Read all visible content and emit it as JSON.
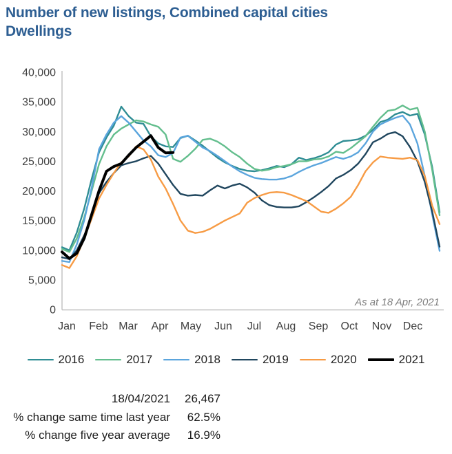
{
  "header": {
    "title": "Number of new listings, Combined capital cities",
    "subtitle": "Dwellings"
  },
  "chart_data": {
    "type": "line",
    "title": "Number of new listings, Combined capital cities",
    "subtitle": "Dwellings",
    "frequency": "weekly",
    "grid": "off",
    "legend_position": "bottom",
    "annotation": "As at 18 Apr, 2021",
    "x_axis": {
      "label": "",
      "months": [
        "Jan",
        "Feb",
        "Mar",
        "Apr",
        "May",
        "Jun",
        "Jul",
        "Aug",
        "Sep",
        "Oct",
        "Nov",
        "Dec"
      ]
    },
    "y_axis": {
      "label": "",
      "min": 0,
      "max": 40000,
      "tick_step": 5000,
      "tick_labels": [
        "40,000",
        "35,000",
        "30,000",
        "25,000",
        "20,000",
        "15,000",
        "10,000",
        "5,000",
        "0"
      ]
    },
    "series": [
      {
        "name": "2016",
        "color": "#2F8D94",
        "width": 2.4,
        "values": [
          10500,
          10000,
          13000,
          17000,
          22000,
          26500,
          29000,
          31000,
          34200,
          32600,
          31500,
          31300,
          29200,
          28000,
          27500,
          27400,
          28900,
          29300,
          28500,
          27600,
          26600,
          25600,
          24800,
          24200,
          23700,
          23400,
          23300,
          23500,
          23800,
          24200,
          24000,
          24500,
          25600,
          25200,
          25500,
          25900,
          26500,
          27800,
          28400,
          28500,
          28700,
          29300,
          30300,
          31600,
          32000,
          32900,
          33300,
          32700,
          33000,
          29500,
          24000,
          16400
        ]
      },
      {
        "name": "2017",
        "color": "#63BE8D",
        "width": 2.4,
        "values": [
          10200,
          9700,
          12000,
          15500,
          20000,
          24500,
          27500,
          29500,
          30500,
          31200,
          31900,
          31700,
          31200,
          30800,
          29500,
          25400,
          24900,
          25900,
          27100,
          28600,
          28800,
          28300,
          27500,
          26500,
          25700,
          24600,
          23700,
          23400,
          23600,
          24000,
          24200,
          24500,
          25000,
          25000,
          25300,
          25400,
          25800,
          26600,
          26400,
          27200,
          28200,
          29200,
          30800,
          32300,
          33500,
          33700,
          34400,
          33700,
          34000,
          30000,
          23500,
          15900
        ]
      },
      {
        "name": "2018",
        "color": "#5BA5DD",
        "width": 2.4,
        "values": [
          8200,
          8000,
          11000,
          15000,
          20500,
          27000,
          29500,
          31500,
          32600,
          31500,
          30000,
          28500,
          27500,
          26000,
          25700,
          26400,
          29000,
          29300,
          28300,
          27300,
          26700,
          25900,
          25000,
          24100,
          23300,
          22700,
          22200,
          22000,
          21900,
          21900,
          22100,
          22500,
          23200,
          23800,
          24300,
          24700,
          25200,
          25700,
          25400,
          25800,
          26500,
          28000,
          30000,
          31200,
          31800,
          32300,
          32700,
          31200,
          28000,
          22500,
          16000,
          9900
        ]
      },
      {
        "name": "2019",
        "color": "#20465E",
        "width": 2.4,
        "values": [
          8800,
          8500,
          10000,
          12500,
          15500,
          19600,
          21500,
          23000,
          24300,
          24700,
          25000,
          25500,
          25900,
          24600,
          22800,
          21000,
          19500,
          19200,
          19300,
          19200,
          20100,
          20900,
          20400,
          20900,
          21200,
          20600,
          19700,
          18400,
          17600,
          17300,
          17200,
          17200,
          17400,
          18100,
          18900,
          19800,
          20800,
          22100,
          22700,
          23500,
          24600,
          26200,
          28200,
          28800,
          29600,
          29900,
          29200,
          27400,
          25000,
          21500,
          16500,
          10600
        ]
      },
      {
        "name": "2020",
        "color": "#F79B44",
        "width": 2.4,
        "values": [
          7500,
          7000,
          9000,
          12000,
          15300,
          18700,
          21000,
          23000,
          24800,
          25800,
          27500,
          27000,
          25300,
          22400,
          20400,
          17800,
          15000,
          13300,
          12900,
          13100,
          13600,
          14300,
          15000,
          15600,
          16200,
          18000,
          18800,
          19300,
          19700,
          19800,
          19700,
          19300,
          18800,
          18300,
          17400,
          16500,
          16300,
          17000,
          17900,
          19000,
          21000,
          23300,
          24800,
          25800,
          25600,
          25500,
          25400,
          25600,
          25200,
          22500,
          17500,
          14400
        ]
      },
      {
        "name": "2021",
        "color": "#000000",
        "width": 4,
        "values": [
          9700,
          8600,
          9500,
          12000,
          16000,
          20000,
          23300,
          24100,
          24600,
          26000,
          27300,
          28300,
          29300,
          27300,
          26400,
          26467
        ]
      }
    ]
  },
  "stats": {
    "rows": [
      {
        "label": "18/04/2021",
        "value": "26,467"
      },
      {
        "label": "% change same time last year",
        "value": "62.5%"
      },
      {
        "label": "% change five year average",
        "value": "16.9%"
      }
    ]
  }
}
